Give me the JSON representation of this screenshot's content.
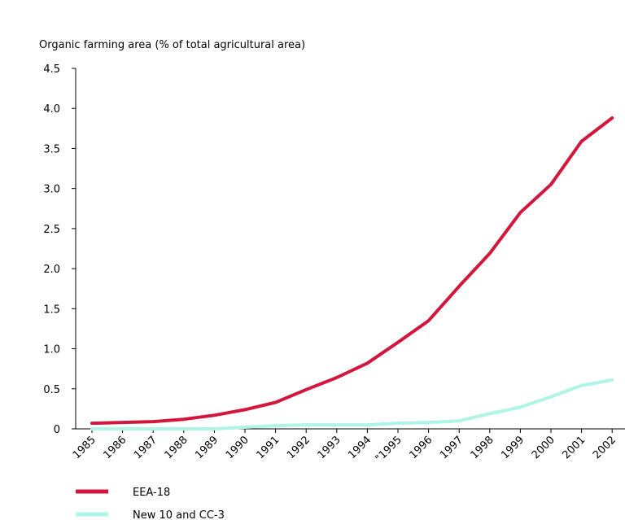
{
  "chart_data": {
    "type": "line",
    "title": "",
    "ylabel": "Organic farming area (% of total agricultural area)",
    "xlabel": "",
    "categories": [
      "1985",
      "1986",
      "1987",
      "1988",
      "1989",
      "1990",
      "1991",
      "1992",
      "1993",
      "1994",
      "\"1995",
      "1996",
      "1997",
      "1998",
      "1999",
      "2000",
      "2001",
      "2002"
    ],
    "ylim": [
      0,
      4.5
    ],
    "yticks": [
      0,
      0.5,
      1.0,
      1.5,
      2.0,
      2.5,
      3.0,
      3.5,
      4.0,
      4.5
    ],
    "ytick_labels": [
      "0",
      "0.5",
      "1.0",
      "1.5",
      "2.0",
      "2.5",
      "3.0",
      "3.5",
      "4.0",
      "4.5"
    ],
    "grid": false,
    "legend_position": "bottom-left",
    "series": [
      {
        "name": "EEA-18",
        "color": "#d2163c",
        "values": [
          0.07,
          0.08,
          0.09,
          0.12,
          0.17,
          0.24,
          0.33,
          0.49,
          0.64,
          0.82,
          1.08,
          1.35,
          1.78,
          2.19,
          2.7,
          3.05,
          3.59,
          3.88
        ]
      },
      {
        "name": "New 10  and CC-3",
        "color": "#aff5e3",
        "values": [
          0.0,
          0.0,
          0.0,
          0.0,
          0.0,
          0.02,
          0.04,
          0.05,
          0.05,
          0.05,
          0.07,
          0.08,
          0.1,
          0.19,
          0.27,
          0.4,
          0.54,
          0.61
        ]
      }
    ]
  }
}
